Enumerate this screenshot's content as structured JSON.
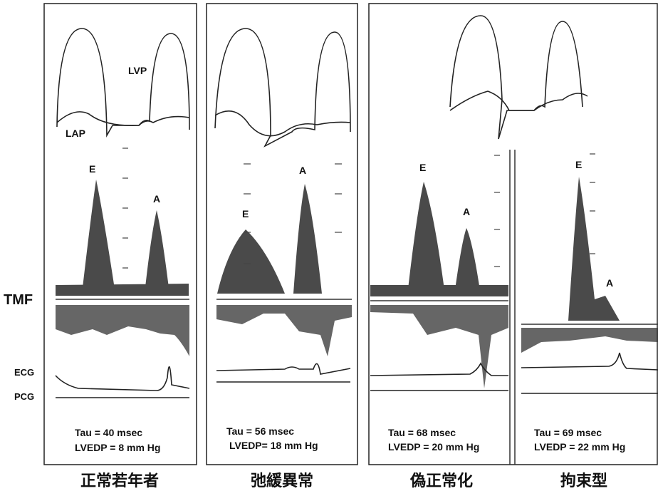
{
  "side_labels": {
    "tmf": "TMF",
    "ecg": "ECG",
    "pcg": "PCG"
  },
  "pressure_labels": {
    "lvp": "LVP",
    "lap": "LAP"
  },
  "panels": [
    {
      "e": "E",
      "a": "A",
      "tau": "Tau = 40 msec",
      "lvedp": "LVEDP = 8 mm Hg",
      "caption": "正常若年者"
    },
    {
      "e": "E",
      "a": "A",
      "tau": "Tau = 56 msec",
      "lvedp": "LVEDP= 18 mm Hg",
      "caption": "弛緩異常"
    },
    {
      "e": "E",
      "a": "A",
      "tau": "Tau = 68 msec",
      "lvedp": "LVEDP = 20 mm Hg",
      "caption": "偽正常化"
    },
    {
      "e": "E",
      "a": "A",
      "tau": "Tau = 69 msec",
      "lvedp": "LVEDP = 22 mm Hg",
      "caption": "拘束型"
    }
  ]
}
